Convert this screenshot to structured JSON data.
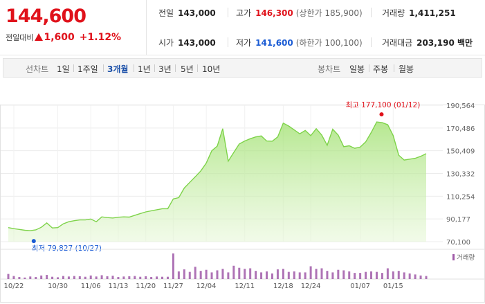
{
  "quote": {
    "price": "144,600",
    "change_label": "전일대비",
    "change_value": "1,600",
    "change_pct": "+1.12%"
  },
  "stats": {
    "prev_close_label": "전일",
    "prev_close": "143,000",
    "high_label": "고가",
    "high": "146,300",
    "upper_limit": "(상한가 185,900)",
    "volume_label": "거래량",
    "volume": "1,411,251",
    "open_label": "시가",
    "open": "143,000",
    "low_label": "저가",
    "low": "141,600",
    "lower_limit": "(하한가 100,100)",
    "turnover_label": "거래대금",
    "turnover": "203,190 백만"
  },
  "toolbar": {
    "line_chart_label": "선차트",
    "periods": [
      "1일",
      "1주일",
      "3개월",
      "1년",
      "3년",
      "5년",
      "10년"
    ],
    "selected_period": "3개월",
    "candle_chart_label": "봉차트",
    "candles": [
      "일봉",
      "주봉",
      "월봉"
    ]
  },
  "colors": {
    "up": "#e0121b",
    "down": "#1a5bd4",
    "line": "#7ed34a",
    "volume": "#a05aa8"
  },
  "chart_data": {
    "type": "area",
    "title": "",
    "y_ticks": [
      "190,564",
      "170,486",
      "150,409",
      "130,332",
      "110,254",
      "90,177",
      "70,100"
    ],
    "ylim": [
      70100,
      190564
    ],
    "x_ticks": [
      "10/22",
      "10/30",
      "11/06",
      "11/13",
      "11/20",
      "11/27",
      "12/04",
      "12/11",
      "12/18",
      "12/24",
      "01/07",
      "01/15"
    ],
    "high_annotation": "최고 177,100 (01/12)",
    "low_annotation": "최저 79,827 (10/27)",
    "high": {
      "value": 177100,
      "date": "01/12"
    },
    "low": {
      "value": 79827,
      "date": "10/27"
    },
    "series": [
      {
        "values": [
          82500,
          81600,
          80900,
          80200,
          79827,
          80500,
          82800,
          86700,
          82200,
          82500,
          85900,
          87700,
          88600,
          89300,
          89300,
          90100,
          87700,
          92000,
          91400,
          91000,
          91700,
          92000,
          91800,
          93400,
          94900,
          96400,
          97400,
          98300,
          99200,
          99200,
          107800,
          109000,
          117400,
          122500,
          127400,
          132600,
          139500,
          150400,
          154500,
          169900,
          141200,
          148800,
          156400,
          159000,
          161000,
          162600,
          163500,
          159000,
          158800,
          162600,
          174800,
          172200,
          168800,
          165400,
          168300,
          163700,
          169900,
          164300,
          155200,
          169400,
          164300,
          154000,
          154800,
          152600,
          153600,
          158300,
          166500,
          175800,
          175200,
          173400,
          163800,
          146500,
          142200,
          143000,
          143700,
          145500,
          147800
        ]
      }
    ],
    "volume_legend": "거래량",
    "volume": [
      20,
      12,
      8,
      6,
      10,
      8,
      14,
      16,
      9,
      7,
      12,
      10,
      12,
      11,
      9,
      14,
      10,
      15,
      11,
      13,
      8,
      10,
      11,
      12,
      9,
      11,
      8,
      10,
      9,
      9,
      100,
      30,
      38,
      28,
      48,
      32,
      36,
      26,
      34,
      40,
      26,
      52,
      44,
      40,
      42,
      32,
      26,
      30,
      22,
      38,
      40,
      28,
      30,
      26,
      26,
      50,
      40,
      42,
      32,
      26,
      36,
      34,
      30,
      24,
      24,
      28,
      30,
      28,
      24,
      42,
      30,
      32,
      26,
      22,
      18,
      14,
      12
    ]
  }
}
